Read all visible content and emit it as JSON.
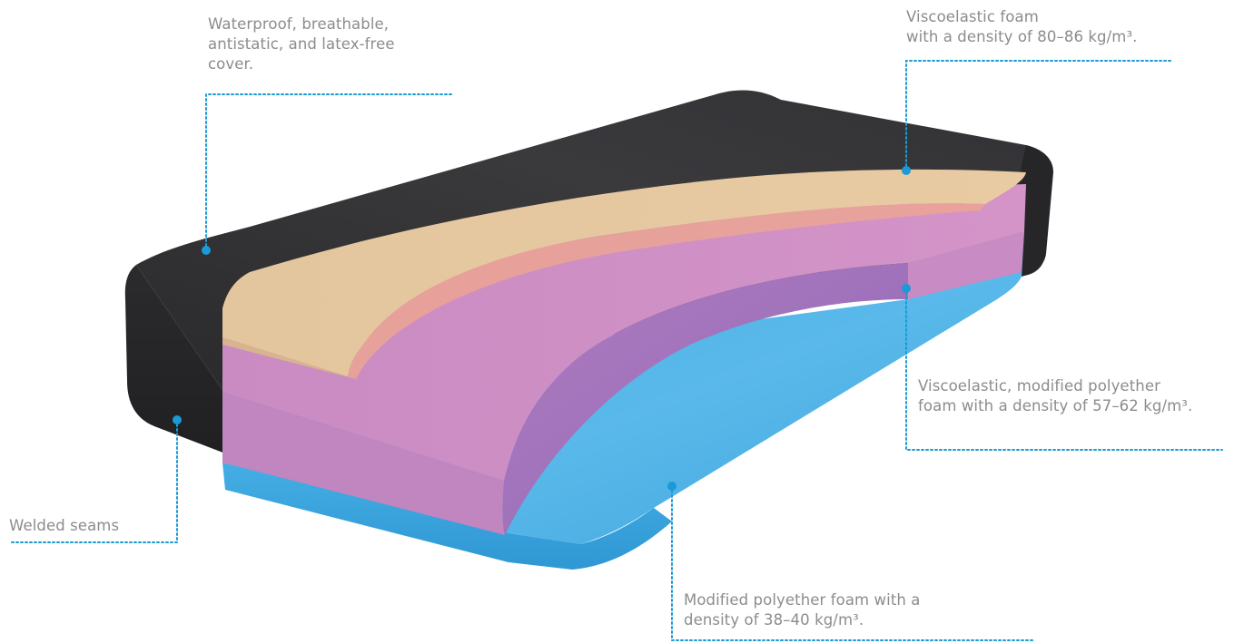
{
  "colors": {
    "cover": "#2d2d2f",
    "top_foam": "#e2c49c",
    "middle_foam": "#cf8ec3",
    "base_foam": "#4aaee3",
    "callout": "#1a9ad6",
    "text": "#8c8c8c"
  },
  "callouts": {
    "cover": {
      "lines": [
        "Waterproof, breathable,",
        "antistatic, and latex-free",
        "cover."
      ]
    },
    "top_foam": {
      "lines": [
        "Viscoelastic foam",
        "with a density of 80–86 kg/m³."
      ]
    },
    "middle_foam": {
      "lines": [
        "Viscoelastic, modified polyether",
        "foam with a density of 57–62 kg/m³."
      ]
    },
    "seams": {
      "lines": [
        "Welded seams"
      ]
    },
    "base_foam": {
      "lines": [
        "Modified polyether foam with a",
        "density of 38–40 kg/m³."
      ]
    }
  }
}
